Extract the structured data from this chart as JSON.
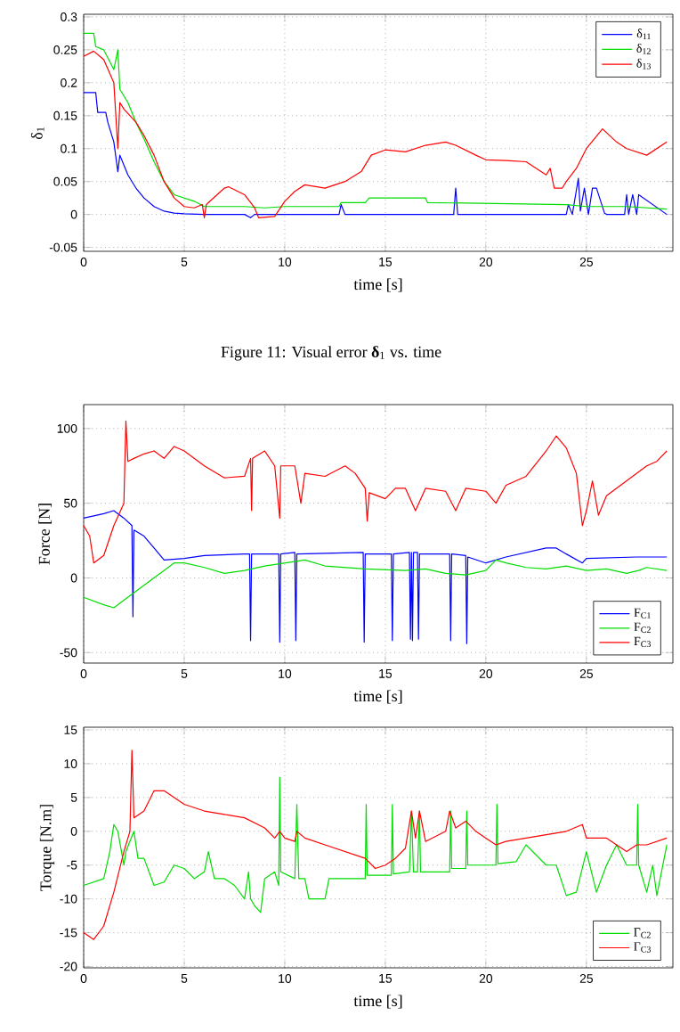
{
  "chart_data": [
    {
      "type": "line",
      "xlabel": "time [s]",
      "ylabel": "δ$_{1}$",
      "xlim": [
        0,
        29.3
      ],
      "ylim": [
        -0.056,
        0.304
      ],
      "xticks": [
        0,
        5,
        10,
        15,
        20,
        25
      ],
      "yticks": [
        -0.05,
        0,
        0.05,
        0.1,
        0.15,
        0.2,
        0.25,
        0.3
      ],
      "grid": true,
      "legend": "top right",
      "annotations": [
        "Figure 11: Visual error **δ**$_{1}$ vs. time"
      ],
      "series": [
        {
          "name": "δ$_{11}$",
          "color": "#0000ff",
          "x": [
            0,
            0.6,
            0.7,
            1.1,
            1.2,
            1.5,
            1.7,
            1.8,
            2.0,
            2.2,
            2.6,
            3,
            3.5,
            4,
            4.5,
            5,
            6,
            8,
            8.3,
            8.5,
            9,
            12.7,
            12.8,
            13,
            18.4,
            18.5,
            18.6,
            24,
            24.1,
            24.3,
            24.6,
            24.7,
            24.9,
            25.1,
            25.3,
            25.5,
            25.9,
            26,
            26.9,
            27,
            27.1,
            27.3,
            27.5,
            27.6,
            29
          ],
          "values": [
            0.185,
            0.185,
            0.155,
            0.155,
            0.14,
            0.11,
            0.065,
            0.09,
            0.075,
            0.06,
            0.04,
            0.025,
            0.012,
            0.005,
            0.002,
            0.001,
            0,
            0,
            -0.005,
            0,
            0,
            0,
            0.015,
            0,
            0,
            0.04,
            0,
            0,
            0.015,
            0,
            0.055,
            0.005,
            0.04,
            0,
            0.04,
            0.04,
            0.002,
            0,
            0,
            0.03,
            0,
            0.03,
            0,
            0.03,
            0
          ]
        },
        {
          "name": "δ$_{12}$",
          "color": "#00dd00",
          "x": [
            0,
            0.5,
            0.6,
            1.0,
            1.5,
            1.7,
            1.8,
            2.2,
            2.6,
            3,
            3.5,
            4,
            4.5,
            5,
            5.5,
            6,
            8,
            9,
            10,
            12.7,
            12.8,
            14,
            14.2,
            17,
            17.1,
            24,
            25,
            27,
            29
          ],
          "values": [
            0.275,
            0.275,
            0.255,
            0.25,
            0.22,
            0.25,
            0.19,
            0.17,
            0.14,
            0.115,
            0.08,
            0.05,
            0.03,
            0.025,
            0.02,
            0.012,
            0.012,
            0.01,
            0.012,
            0.012,
            0.018,
            0.018,
            0.025,
            0.025,
            0.018,
            0.015,
            0.012,
            0.012,
            0.008
          ]
        },
        {
          "name": "δ$_{13}$",
          "color": "#ff0000",
          "x": [
            0,
            0.5,
            1,
            1.5,
            1.7,
            1.8,
            2,
            2.6,
            3,
            3.5,
            4,
            4.5,
            5,
            5.5,
            5.9,
            6,
            6.1,
            7,
            7.2,
            8,
            8.5,
            8.7,
            9.5,
            10,
            10.5,
            11,
            12,
            13,
            13.8,
            14.3,
            15,
            16,
            17,
            18,
            18.5,
            19.5,
            20,
            21,
            22,
            23,
            23.2,
            23.4,
            23.8,
            24,
            24.5,
            25,
            25.8,
            26.5,
            27,
            28,
            29
          ],
          "values": [
            0.24,
            0.248,
            0.235,
            0.2,
            0.1,
            0.17,
            0.16,
            0.14,
            0.12,
            0.09,
            0.05,
            0.025,
            0.012,
            0.01,
            0.015,
            -0.005,
            0.015,
            0.04,
            0.042,
            0.03,
            0.01,
            -0.005,
            -0.003,
            0.02,
            0.035,
            0.045,
            0.04,
            0.05,
            0.065,
            0.09,
            0.098,
            0.095,
            0.105,
            0.11,
            0.105,
            0.09,
            0.083,
            0.082,
            0.08,
            0.06,
            0.07,
            0.04,
            0.04,
            0.05,
            0.07,
            0.1,
            0.13,
            0.11,
            0.1,
            0.09,
            0.11
          ]
        }
      ]
    },
    {
      "type": "line",
      "xlabel": "time [s]",
      "ylabel": "Force [N]",
      "xlim": [
        0,
        29.3
      ],
      "ylim": [
        -57,
        116
      ],
      "xticks": [
        0,
        5,
        10,
        15,
        20,
        25
      ],
      "yticks": [
        -50,
        0,
        50,
        100
      ],
      "grid": true,
      "legend": "bottom right",
      "series": [
        {
          "name": "F$_{C1}$",
          "color": "#0000ff",
          "x": [
            0,
            1,
            1.5,
            2,
            2.4,
            2.45,
            2.5,
            3,
            3.5,
            4,
            5,
            6,
            8,
            8.25,
            8.3,
            8.35,
            9.7,
            9.75,
            9.8,
            10.5,
            10.55,
            10.6,
            13.9,
            13.95,
            14,
            15.3,
            15.35,
            15.4,
            16.2,
            16.25,
            16.3,
            16.35,
            16.4,
            16.6,
            16.65,
            16.7,
            18.2,
            18.25,
            18.3,
            19,
            19.05,
            19.1,
            20,
            21,
            22,
            23,
            23.5,
            24,
            24.8,
            25,
            27.5,
            29
          ],
          "values": [
            40,
            43,
            45,
            40,
            35,
            -26,
            32,
            28,
            20,
            12,
            13,
            15,
            16,
            16,
            -42,
            16,
            16,
            -43,
            16,
            17,
            -42,
            16,
            17,
            -43,
            16,
            16,
            -42,
            16,
            17,
            -41,
            17,
            -42,
            17,
            17,
            -41,
            16,
            16,
            -42,
            16,
            15,
            -44,
            14,
            10,
            14,
            17,
            20,
            20,
            16,
            10,
            13,
            14,
            14
          ]
        },
        {
          "name": "F$_{C2}$",
          "color": "#00dd00",
          "x": [
            0,
            1,
            1.5,
            2,
            3,
            4,
            4.5,
            5,
            6,
            7,
            8,
            9,
            10,
            11,
            12,
            14,
            16,
            17,
            18,
            19,
            20,
            20.5,
            21,
            22,
            23,
            24,
            25,
            26,
            27,
            27.6,
            28,
            29
          ],
          "values": [
            -13,
            -18,
            -20,
            -15,
            -5,
            5,
            10,
            10,
            7,
            3,
            5,
            8,
            10,
            12,
            8,
            6,
            5,
            6,
            3,
            2,
            5,
            12,
            10,
            7,
            6,
            8,
            5,
            6,
            3,
            5,
            7,
            5
          ]
        },
        {
          "name": "F$_{C3}$",
          "color": "#ff0000",
          "x": [
            0,
            0.3,
            0.5,
            1,
            1.5,
            2,
            2.1,
            2.2,
            2.5,
            3,
            3.5,
            4,
            4.5,
            5,
            5.5,
            6,
            7,
            8,
            8.3,
            8.35,
            8.4,
            9,
            9.5,
            9.75,
            9.8,
            10.5,
            10.8,
            11,
            12,
            13,
            13.5,
            14,
            14.1,
            14.2,
            15,
            15.5,
            16,
            16.5,
            17,
            18,
            18.5,
            19,
            20,
            20.5,
            21,
            22,
            23,
            23.5,
            24,
            24.5,
            24.8,
            25,
            25.3,
            25.6,
            26,
            27,
            28,
            28.5,
            29
          ],
          "values": [
            35,
            28,
            10,
            15,
            35,
            50,
            105,
            78,
            80,
            83,
            85,
            80,
            88,
            85,
            80,
            75,
            67,
            68,
            80,
            45,
            80,
            85,
            75,
            40,
            75,
            75,
            50,
            70,
            68,
            75,
            70,
            60,
            38,
            57,
            53,
            60,
            60,
            45,
            60,
            58,
            45,
            60,
            58,
            50,
            62,
            68,
            85,
            95,
            87,
            70,
            35,
            45,
            65,
            42,
            55,
            65,
            75,
            78,
            85
          ]
        }
      ]
    },
    {
      "type": "line",
      "xlabel": "time [s]",
      "ylabel": "Torque [N.m]",
      "xlim": [
        0,
        29.3
      ],
      "ylim": [
        -20.2,
        15.4
      ],
      "xticks": [
        0,
        5,
        10,
        15,
        20,
        25
      ],
      "yticks": [
        -20,
        -15,
        -10,
        -5,
        0,
        5,
        10,
        15
      ],
      "grid": true,
      "legend": "bottom right",
      "series": [
        {
          "name": "Γ$_{C2}$",
          "color": "#00dd00",
          "x": [
            0,
            1,
            1.3,
            1.5,
            1.7,
            2,
            2.1,
            2.5,
            2.7,
            3,
            3.5,
            4,
            4.5,
            5,
            5.5,
            6,
            6.2,
            6.5,
            7,
            7.5,
            8,
            8.2,
            8.3,
            8.5,
            8.8,
            9,
            9.5,
            9.7,
            9.75,
            9.8,
            10.5,
            10.6,
            10.7,
            11,
            11.2,
            12,
            12.2,
            14,
            14.05,
            14.1,
            15.3,
            15.35,
            15.4,
            16.2,
            16.3,
            16.4,
            16.6,
            16.7,
            16.75,
            18.2,
            18.25,
            18.3,
            19,
            19.05,
            19.1,
            20.5,
            20.55,
            20.6,
            21.5,
            22,
            23,
            23.5,
            24,
            24.5,
            25,
            25.5,
            26,
            26.5,
            27,
            27.5,
            27.55,
            27.6,
            28,
            28.3,
            28.5,
            29
          ],
          "values": [
            -8,
            -7,
            -3,
            1,
            0,
            -5,
            -3,
            0,
            -4,
            -4,
            -8,
            -7.5,
            -5,
            -5.5,
            -7,
            -6,
            -3,
            -7,
            -7,
            -8,
            -10,
            -6,
            -10,
            -11,
            -12,
            -7,
            -6,
            -8,
            8,
            -6,
            -7,
            4,
            -7,
            -7,
            -10,
            -10,
            -7,
            -7,
            4,
            -6.5,
            -6.5,
            4,
            -6.3,
            -6,
            3,
            -6,
            -6,
            3,
            -6,
            -6,
            3,
            -5.5,
            -5.5,
            3,
            -5,
            -5,
            4,
            -4.8,
            -4.5,
            -2,
            -5,
            -5,
            -9.5,
            -9,
            -3,
            -9,
            -5,
            -2,
            -5,
            -5,
            4,
            -5,
            -9,
            -5,
            -9.5,
            -2
          ]
        },
        {
          "name": "Γ$_{C3}$",
          "color": "#ff0000",
          "x": [
            0,
            0.5,
            1,
            1.5,
            2,
            2.3,
            2.4,
            2.5,
            3,
            3.5,
            4,
            4.5,
            5,
            6,
            7,
            8,
            9,
            9.5,
            9.75,
            10,
            10.5,
            10.6,
            11,
            12,
            13,
            14,
            14.5,
            15,
            15.5,
            16,
            16.3,
            16.5,
            16.7,
            17,
            18,
            18.2,
            18.5,
            19,
            19.5,
            20,
            20.5,
            21,
            22,
            23,
            24,
            24.8,
            25,
            26,
            27,
            27.5,
            28,
            29
          ],
          "values": [
            -15,
            -16,
            -14,
            -9,
            -3,
            0,
            12,
            2,
            3,
            6,
            6,
            5,
            4,
            3,
            2.5,
            2,
            0.5,
            -1,
            0,
            -1,
            -1.5,
            0,
            -1,
            -2,
            -3,
            -4,
            -5.5,
            -5,
            -4,
            -2.5,
            3,
            -1,
            3,
            -1.5,
            0,
            3,
            0.5,
            1.5,
            0,
            -1,
            -2,
            -1.5,
            -1,
            -0.5,
            0,
            1,
            -1,
            -1,
            -3,
            -2,
            -2,
            -1
          ]
        }
      ]
    }
  ]
}
